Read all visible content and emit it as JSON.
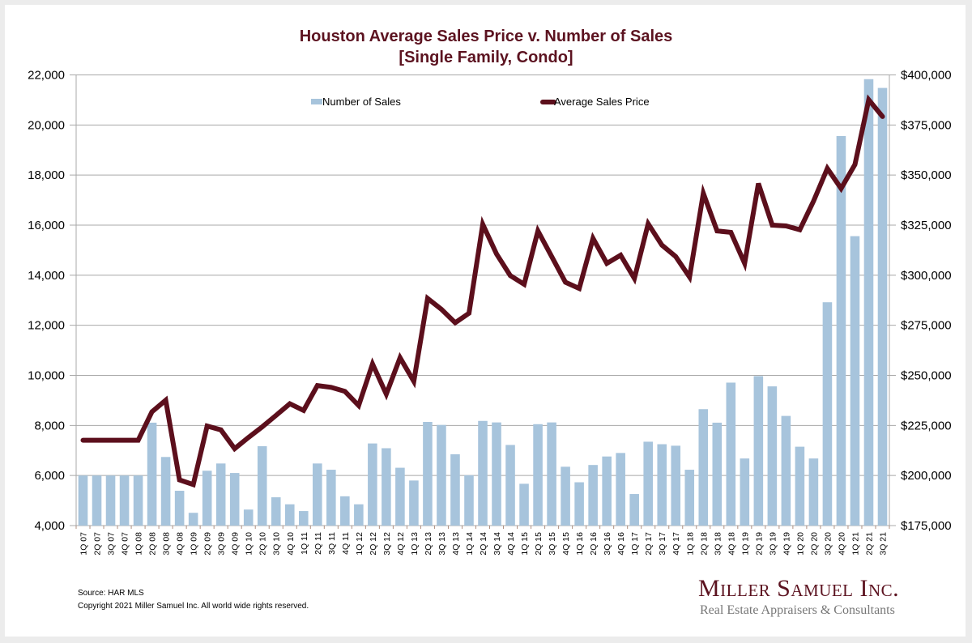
{
  "title_line1": "Houston Average Sales Price v. Number of Sales",
  "title_line2": "[Single Family, Condo]",
  "footer": {
    "source": "Source: HAR MLS",
    "copyright": "Copyright 2021 Miller Samuel Inc.  All world wide rights reserved."
  },
  "logo": {
    "name": "Miller Samuel Inc.",
    "tagline": "Real Estate Appraisers & Consultants"
  },
  "colors": {
    "bar": "#a7c4dc",
    "line": "#5c0f1c",
    "title": "#5c1320",
    "grid": "#a8a8a8"
  },
  "chart_data": {
    "type": "bar+line",
    "title": "Houston Average Sales Price v. Number of Sales [Single Family, Condo]",
    "xlabel": "",
    "ylabel_left": "Number of Sales",
    "ylabel_right": "Average Sales Price",
    "legend": {
      "placement": "top-center",
      "entries": [
        "Number of Sales",
        "Average Sales Price"
      ]
    },
    "grid": true,
    "ylim_left": [
      4000,
      22000
    ],
    "ylim_right": [
      175000,
      400000
    ],
    "yticks_left": [
      "4,000",
      "6,000",
      "8,000",
      "10,000",
      "12,000",
      "14,000",
      "16,000",
      "18,000",
      "20,000",
      "22,000"
    ],
    "yticks_right": [
      "$175,000",
      "$200,000",
      "$225,000",
      "$250,000",
      "$275,000",
      "$300,000",
      "$325,000",
      "$350,000",
      "$375,000",
      "$400,000"
    ],
    "categories": [
      "1Q 07",
      "2Q 07",
      "3Q 07",
      "4Q 07",
      "1Q 08",
      "2Q 08",
      "3Q 08",
      "4Q 08",
      "1Q 09",
      "2Q 09",
      "3Q 09",
      "4Q 09",
      "1Q 10",
      "2Q 10",
      "3Q 10",
      "4Q 10",
      "1Q 11",
      "2Q 11",
      "3Q 11",
      "4Q 11",
      "1Q 12",
      "2Q 12",
      "3Q 12",
      "4Q 12",
      "1Q 13",
      "2Q 13",
      "3Q 13",
      "4Q 13",
      "1Q 14",
      "2Q 14",
      "3Q 14",
      "4Q 14",
      "1Q 15",
      "2Q 15",
      "3Q 15",
      "4Q 15",
      "1Q 16",
      "2Q 16",
      "3Q 16",
      "4Q 16",
      "1Q 17",
      "2Q 17",
      "3Q 17",
      "4Q 17",
      "1Q 18",
      "2Q 18",
      "3Q 18",
      "4Q 18",
      "1Q 19",
      "2Q 19",
      "3Q 19",
      "4Q 19",
      "1Q 20",
      "2Q 20",
      "3Q 20",
      "4Q 20",
      "1Q 21",
      "2Q 21",
      "3Q 21"
    ],
    "series": [
      {
        "name": "Number of Sales",
        "type": "bar",
        "axis": "left",
        "values": [
          6000,
          6000,
          6000,
          6000,
          6000,
          8110,
          6740,
          5390,
          4510,
          6190,
          6480,
          6100,
          4640,
          7170,
          5130,
          4850,
          4580,
          6480,
          6230,
          5170,
          4850,
          7280,
          7090,
          6310,
          5800,
          8140,
          8020,
          6850,
          6010,
          8180,
          8120,
          7220,
          5670,
          8050,
          8120,
          6350,
          5730,
          6420,
          6760,
          6900,
          5260,
          7350,
          7250,
          7190,
          6230,
          8650,
          8110,
          9710,
          6680,
          9970,
          9560,
          8380,
          7150,
          6680,
          12920,
          19560,
          15560,
          21830,
          21480
        ]
      },
      {
        "name": "Average Sales Price",
        "type": "line",
        "axis": "right",
        "values": [
          217600,
          217600,
          217600,
          217600,
          217600,
          231800,
          237600,
          197800,
          195500,
          224700,
          222800,
          213400,
          219000,
          224300,
          230000,
          235800,
          232500,
          244900,
          244000,
          242000,
          234900,
          255700,
          240600,
          258800,
          247000,
          288400,
          283000,
          276300,
          281000,
          325400,
          310600,
          299800,
          295500,
          322100,
          309300,
          296500,
          293400,
          318400,
          305900,
          310000,
          298400,
          325700,
          315000,
          309300,
          299100,
          340900,
          322100,
          321400,
          305900,
          345800,
          325000,
          324600,
          322700,
          337000,
          353300,
          343300,
          355300,
          387600,
          379200
        ]
      }
    ]
  }
}
